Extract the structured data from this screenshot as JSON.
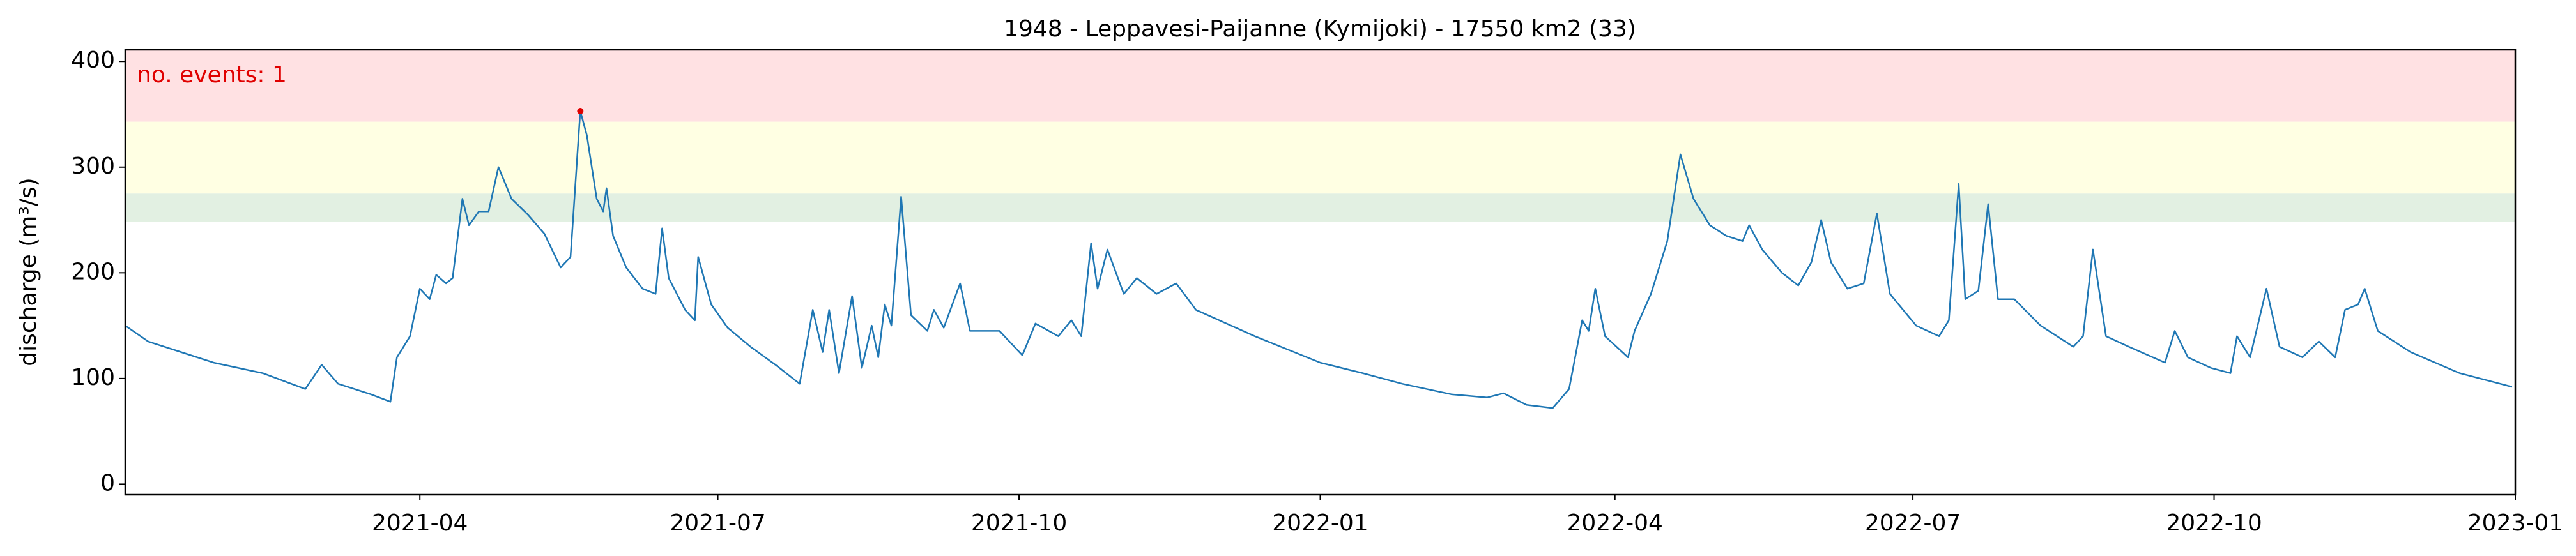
{
  "chart_data": {
    "type": "line",
    "title": "1948 - Leppavesi-Paijanne (Kymijoki) - 17550 km2 (33)",
    "y_label": "discharge (m³/s)",
    "annotation": "no. events: 1",
    "annotation_color": "#e00000",
    "xlim": [
      "2021-01",
      "2023-01"
    ],
    "xticks": [
      "2021-04",
      "2021-07",
      "2021-10",
      "2022-01",
      "2022-04",
      "2022-07",
      "2022-10",
      "2023-01"
    ],
    "ylim": [
      -10,
      411
    ],
    "yticks": [
      0,
      100,
      200,
      300,
      400
    ],
    "bands": [
      {
        "from": 248,
        "to": 275,
        "color": "#e2f0e2"
      },
      {
        "from": 275,
        "to": 343,
        "color": "#ffffe3"
      },
      {
        "from": 343,
        "to": 411,
        "color": "#ffe1e3"
      }
    ],
    "series": [
      {
        "name": "discharge",
        "color": "#1f77b4",
        "x": [
          "2021-01-01",
          "2021-01-08",
          "2021-01-18",
          "2021-01-28",
          "2021-02-12",
          "2021-02-25",
          "2021-03-02",
          "2021-03-07",
          "2021-03-17",
          "2021-03-23",
          "2021-03-25",
          "2021-03-29",
          "2021-04-01",
          "2021-04-04",
          "2021-04-06",
          "2021-04-09",
          "2021-04-11",
          "2021-04-14",
          "2021-04-16",
          "2021-04-19",
          "2021-04-22",
          "2021-04-25",
          "2021-04-29",
          "2021-05-04",
          "2021-05-09",
          "2021-05-14",
          "2021-05-17",
          "2021-05-20",
          "2021-05-22",
          "2021-05-25",
          "2021-05-27",
          "2021-05-28",
          "2021-05-30",
          "2021-06-03",
          "2021-06-08",
          "2021-06-12",
          "2021-06-14",
          "2021-06-16",
          "2021-06-21",
          "2021-06-24",
          "2021-06-25",
          "2021-06-29",
          "2021-07-04",
          "2021-07-11",
          "2021-07-19",
          "2021-07-26",
          "2021-07-30",
          "2021-08-02",
          "2021-08-04",
          "2021-08-07",
          "2021-08-11",
          "2021-08-14",
          "2021-08-17",
          "2021-08-19",
          "2021-08-21",
          "2021-08-23",
          "2021-08-26",
          "2021-08-29",
          "2021-09-03",
          "2021-09-05",
          "2021-09-08",
          "2021-09-13",
          "2021-09-16",
          "2021-09-25",
          "2021-10-02",
          "2021-10-06",
          "2021-10-13",
          "2021-10-17",
          "2021-10-20",
          "2021-10-23",
          "2021-10-25",
          "2021-10-28",
          "2021-11-02",
          "2021-11-06",
          "2021-11-12",
          "2021-11-18",
          "2021-11-24",
          "2021-12-12",
          "2022-01-01",
          "2022-01-14",
          "2022-01-26",
          "2022-02-10",
          "2022-02-21",
          "2022-02-26",
          "2022-03-05",
          "2022-03-13",
          "2022-03-18",
          "2022-03-22",
          "2022-03-24",
          "2022-03-26",
          "2022-03-29",
          "2022-04-05",
          "2022-04-07",
          "2022-04-12",
          "2022-04-17",
          "2022-04-21",
          "2022-04-25",
          "2022-04-30",
          "2022-05-05",
          "2022-05-10",
          "2022-05-12",
          "2022-05-16",
          "2022-05-22",
          "2022-05-27",
          "2022-05-31",
          "2022-06-03",
          "2022-06-06",
          "2022-06-11",
          "2022-06-16",
          "2022-06-20",
          "2022-06-24",
          "2022-07-02",
          "2022-07-09",
          "2022-07-12",
          "2022-07-15",
          "2022-07-17",
          "2022-07-21",
          "2022-07-24",
          "2022-07-27",
          "2022-08-01",
          "2022-08-09",
          "2022-08-19",
          "2022-08-22",
          "2022-08-25",
          "2022-08-29",
          "2022-09-05",
          "2022-09-16",
          "2022-09-19",
          "2022-09-23",
          "2022-09-30",
          "2022-10-06",
          "2022-10-08",
          "2022-10-12",
          "2022-10-17",
          "2022-10-21",
          "2022-10-28",
          "2022-11-02",
          "2022-11-07",
          "2022-11-10",
          "2022-11-14",
          "2022-11-16",
          "2022-11-20",
          "2022-11-30",
          "2022-12-15",
          "2022-12-31"
        ],
        "values": [
          150,
          135,
          125,
          115,
          105,
          90,
          113,
          95,
          85,
          78,
          120,
          140,
          185,
          175,
          198,
          190,
          195,
          270,
          245,
          258,
          258,
          300,
          270,
          255,
          237,
          205,
          215,
          353,
          330,
          270,
          258,
          280,
          235,
          205,
          185,
          180,
          242,
          195,
          165,
          155,
          215,
          170,
          148,
          130,
          112,
          95,
          165,
          125,
          165,
          105,
          178,
          110,
          150,
          120,
          170,
          150,
          272,
          160,
          145,
          165,
          148,
          190,
          145,
          145,
          122,
          152,
          140,
          155,
          140,
          228,
          185,
          222,
          180,
          195,
          180,
          190,
          165,
          140,
          115,
          105,
          95,
          85,
          82,
          86,
          75,
          72,
          90,
          155,
          145,
          185,
          140,
          120,
          145,
          180,
          230,
          312,
          270,
          245,
          235,
          230,
          245,
          222,
          200,
          188,
          210,
          250,
          210,
          185,
          190,
          256,
          180,
          150,
          140,
          155,
          284,
          175,
          183,
          265,
          175,
          175,
          150,
          130,
          140,
          222,
          140,
          130,
          115,
          145,
          120,
          110,
          105,
          140,
          120,
          185,
          130,
          120,
          135,
          120,
          165,
          170,
          185,
          145,
          125,
          105,
          92
        ]
      }
    ],
    "events": [
      {
        "x": "2021-05-20",
        "value": 353,
        "color": "#e00000"
      }
    ]
  }
}
